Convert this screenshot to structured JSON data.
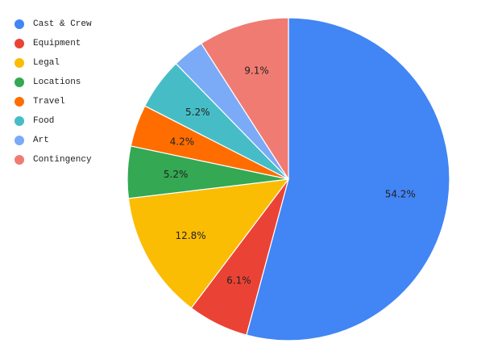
{
  "chart_data": {
    "type": "pie",
    "title": "",
    "legend_position": "left",
    "series": [
      {
        "name": "Cast & Crew",
        "value": 54.2,
        "label": "54.2%",
        "color": "#4285f4"
      },
      {
        "name": "Equipment",
        "value": 6.1,
        "label": "6.1%",
        "color": "#ea4335"
      },
      {
        "name": "Legal",
        "value": 12.8,
        "label": "12.8%",
        "color": "#fbbc04"
      },
      {
        "name": "Locations",
        "value": 5.2,
        "label": "5.2%",
        "color": "#34a853"
      },
      {
        "name": "Travel",
        "value": 4.2,
        "label": "4.2%",
        "color": "#ff6d01"
      },
      {
        "name": "Food",
        "value": 5.2,
        "label": "5.2%",
        "color": "#46bdc6"
      },
      {
        "name": "Art",
        "value": 3.2,
        "label": "",
        "color": "#7baaf7"
      },
      {
        "name": "Contingency",
        "value": 9.1,
        "label": "9.1%",
        "color": "#f07b72"
      }
    ]
  }
}
